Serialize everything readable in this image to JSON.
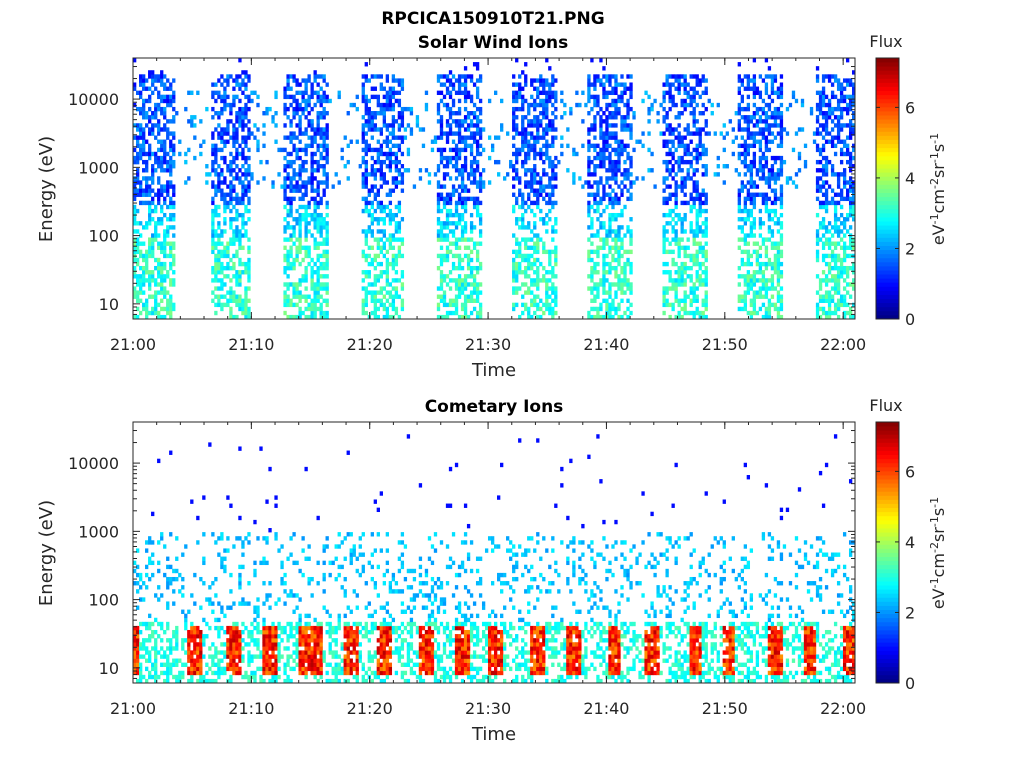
{
  "figure": {
    "title": "RPCICA150910T21.PNG"
  },
  "chart_data": [
    {
      "type": "heatmap",
      "title": "Solar Wind Ions",
      "xlabel": "Time",
      "ylabel": "Energy (eV)",
      "x_ticks": [
        "21:00",
        "21:10",
        "21:20",
        "21:30",
        "21:40",
        "21:50",
        "22:00"
      ],
      "x_range": [
        "21:00",
        "22:01"
      ],
      "y_scale": "log",
      "y_ticks": [
        "10",
        "100",
        "1000",
        "10000"
      ],
      "y_range": [
        6,
        40000
      ],
      "colorbar": {
        "label": "Flux",
        "unit": "eV-1cm-2sr-1s-1",
        "ticks": [
          "0",
          "2",
          "4",
          "6"
        ],
        "range": [
          0,
          7.4
        ],
        "colormap": "jet"
      },
      "scan_windows_min": [
        [
          0,
          3.5
        ],
        [
          6.5,
          10
        ],
        [
          12.8,
          16.5
        ],
        [
          19.3,
          23
        ],
        [
          25.6,
          29.5
        ],
        [
          32,
          35.8
        ],
        [
          38.4,
          42.2
        ],
        [
          44.8,
          48.6
        ],
        [
          51.2,
          55
        ],
        [
          57.6,
          61
        ]
      ],
      "description_values": {
        "high_energy_band_eV": [
          300,
          20000
        ],
        "high_energy_flux": 1.2,
        "low_energy_band_eV": [
          6,
          100
        ],
        "low_energy_flux": 3.0
      }
    },
    {
      "type": "heatmap",
      "title": "Cometary Ions",
      "xlabel": "Time",
      "ylabel": "Energy (eV)",
      "x_ticks": [
        "21:00",
        "21:10",
        "21:20",
        "21:30",
        "21:40",
        "21:50",
        "22:00"
      ],
      "x_range": [
        "21:00",
        "22:01"
      ],
      "y_scale": "log",
      "y_ticks": [
        "10",
        "100",
        "1000",
        "10000"
      ],
      "y_range": [
        6,
        40000
      ],
      "colorbar": {
        "label": "Flux",
        "unit": "eV-1cm-2sr-1s-1",
        "ticks": [
          "0",
          "2",
          "4",
          "6"
        ],
        "range": [
          0,
          7.4
        ],
        "colormap": "jet"
      },
      "hot_spots_min": [
        0,
        5.3,
        8.5,
        11.5,
        14.5,
        15.5,
        18.5,
        21.3,
        24.8,
        27.8,
        30.6,
        34.2,
        37.3,
        40.7,
        43.8,
        47.5,
        50.3,
        54.2,
        57.2,
        60.5
      ],
      "description_values": {
        "peak_energy_eV": [
          10,
          40
        ],
        "peak_flux": 6.8
      }
    }
  ]
}
